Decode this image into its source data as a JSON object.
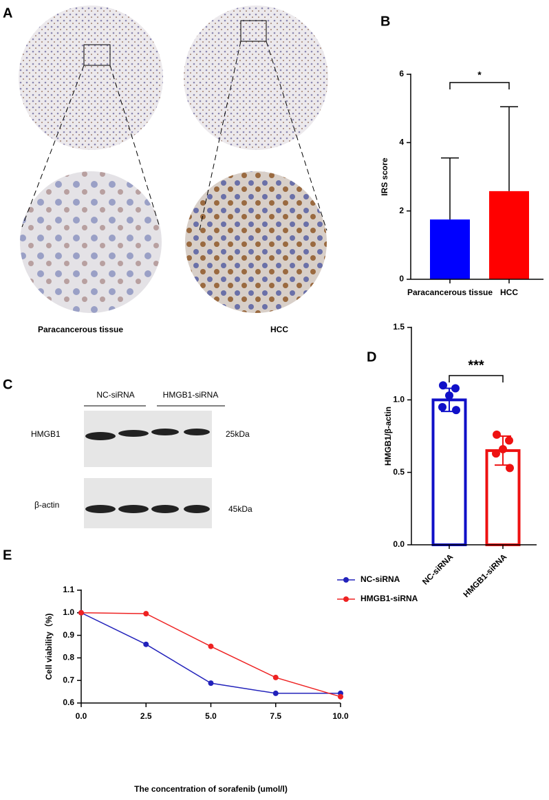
{
  "figure_a": {
    "label": "A",
    "captions": [
      "Paracancerous tissue",
      "HCC"
    ]
  },
  "figure_c": {
    "label": "C",
    "groups": [
      "NC-siRNA",
      "HMGB1-siRNA"
    ],
    "rows": [
      {
        "name": "HMGB1",
        "size": "25kDa"
      },
      {
        "name": "β-actin",
        "size": "45kDa"
      }
    ]
  },
  "chart_data": [
    {
      "type": "bar",
      "label": "B",
      "ylabel": "IRS score",
      "categories": [
        "Paracancerous tissue",
        "HCC"
      ],
      "values": [
        1.75,
        2.58
      ],
      "errors": [
        1.8,
        2.47
      ],
      "colors": [
        "#0000ff",
        "#ff0000"
      ],
      "ylim": [
        0,
        6
      ],
      "yticks": [
        0,
        2,
        4,
        6
      ],
      "annotation": "*"
    },
    {
      "type": "bar-dots",
      "label": "D",
      "ylabel": "HMGB1/β-actin",
      "categories": [
        "NC-siRNA",
        "HMGB1-siRNA"
      ],
      "values": [
        1.0,
        0.65
      ],
      "errors": [
        0.08,
        0.1
      ],
      "points": [
        [
          1.1,
          1.08,
          1.03,
          0.95,
          0.93
        ],
        [
          0.76,
          0.72,
          0.66,
          0.63,
          0.53
        ]
      ],
      "colors": [
        "#1010c8",
        "#ee1111"
      ],
      "ylim": [
        0,
        1.5
      ],
      "yticks": [
        {
          "value": 0,
          "label": "0.0"
        },
        {
          "value": 0.5,
          "label": "0.5"
        },
        {
          "value": 1,
          "label": "1.0"
        },
        {
          "value": 1.5,
          "label": "1.5"
        }
      ],
      "annotation": "***"
    },
    {
      "type": "line",
      "label": "E",
      "xlabel": "The concentration of sorafenib (umol/l)",
      "ylabel": "Cell viability（%)",
      "x": [
        0,
        2.5,
        5,
        7.5,
        10
      ],
      "series": [
        {
          "name": "NC-siRNA",
          "color": "#2222bb",
          "values": [
            1.0,
            0.86,
            0.688,
            0.643,
            0.643
          ]
        },
        {
          "name": "HMGB1-siRNA",
          "color": "#ee2222",
          "values": [
            1.0,
            0.996,
            0.851,
            0.713,
            0.628
          ]
        }
      ],
      "xlim": [
        0,
        10
      ],
      "xticks": [
        {
          "value": 0,
          "label": "0.0"
        },
        2.5,
        {
          "value": 5,
          "label": "5.0"
        },
        7.5,
        {
          "value": 10,
          "label": "10.0"
        }
      ],
      "ylim": [
        0.6,
        1.1
      ],
      "yticks": [
        0.6,
        0.7,
        0.8,
        0.9,
        {
          "value": 1,
          "label": "1.0"
        },
        1.1
      ],
      "legend": "top-right"
    }
  ]
}
